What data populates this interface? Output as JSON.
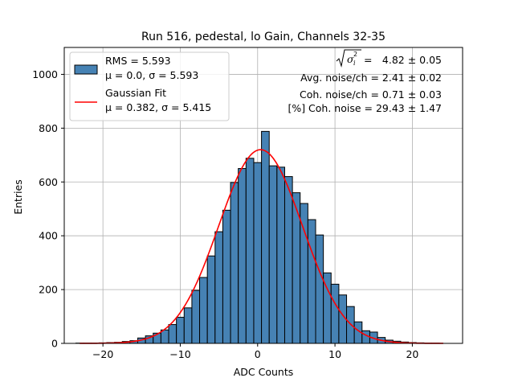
{
  "chart_data": {
    "type": "bar",
    "title": "Run 516, pedestal, lo Gain, Channels 32-35",
    "xlabel": "ADC Counts",
    "ylabel": "Entries",
    "xlim": [
      -25,
      26.5
    ],
    "ylim": [
      0,
      1100
    ],
    "xticks": [
      -20,
      -10,
      0,
      10,
      20
    ],
    "yticks": [
      0,
      200,
      400,
      600,
      800,
      1000
    ],
    "grid": true,
    "legend_position": "top-left",
    "bin_width": 1,
    "bins": [
      [
        -23,
        1
      ],
      [
        -22,
        1
      ],
      [
        -21,
        1
      ],
      [
        -20,
        2
      ],
      [
        -19,
        3
      ],
      [
        -18,
        4
      ],
      [
        -17,
        7
      ],
      [
        -16,
        10
      ],
      [
        -15,
        20
      ],
      [
        -14,
        28
      ],
      [
        -13,
        38
      ],
      [
        -12,
        50
      ],
      [
        -11,
        70
      ],
      [
        -10,
        97
      ],
      [
        -9,
        132
      ],
      [
        -8,
        197
      ],
      [
        -7,
        245
      ],
      [
        -6,
        325
      ],
      [
        -5,
        415
      ],
      [
        -4,
        495
      ],
      [
        -3,
        598
      ],
      [
        -2,
        650
      ],
      [
        -1,
        688
      ],
      [
        0,
        672
      ],
      [
        1,
        788
      ],
      [
        2,
        660
      ],
      [
        3,
        655
      ],
      [
        4,
        620
      ],
      [
        5,
        560
      ],
      [
        6,
        520
      ],
      [
        7,
        460
      ],
      [
        8,
        403
      ],
      [
        9,
        262
      ],
      [
        10,
        220
      ],
      [
        11,
        180
      ],
      [
        12,
        137
      ],
      [
        13,
        80
      ],
      [
        14,
        47
      ],
      [
        15,
        42
      ],
      [
        16,
        22
      ],
      [
        17,
        12
      ],
      [
        18,
        8
      ],
      [
        19,
        5
      ],
      [
        20,
        3
      ],
      [
        21,
        2
      ],
      [
        22,
        1
      ],
      [
        23,
        1
      ]
    ],
    "fit": {
      "mu": 0.382,
      "sigma": 5.415,
      "amplitude": 720,
      "range": [
        -23,
        24
      ]
    },
    "series": [
      {
        "name": "RMS = 5.593",
        "name_line2": "μ = 0.0, σ = 5.593",
        "color": "#4682b4",
        "edge": "#000000"
      },
      {
        "name": "Gaussian Fit",
        "name_line2": "μ = 0.382, σ = 5.415",
        "color": "#ff0000"
      }
    ],
    "annotations": [
      {
        "label": "√σ_i² = ",
        "label_value": "4.82 ± 0.05"
      },
      {
        "label": "Avg. noise/ch = 2.41 ± 0.02"
      },
      {
        "label": "Coh. noise/ch = 0.71 ± 0.03"
      },
      {
        "label": "[%] Coh. noise = 29.43 ± 1.47"
      }
    ]
  }
}
